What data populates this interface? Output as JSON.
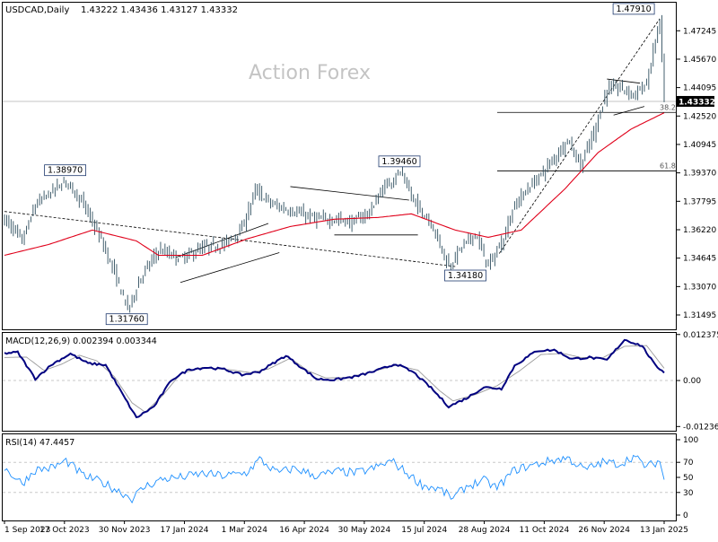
{
  "colors": {
    "candle": "#2f4f5f",
    "ma_line": "#e0001a",
    "macd_line": "#000080",
    "signal_line": "#9a9a9a",
    "rsi_line": "#1e90ff",
    "grid": "#c8c8c8",
    "frame": "#000000",
    "watermark": "#c4c4c4"
  },
  "header": {
    "symbol": "USDCAD,Daily",
    "ohlc": "1.43222 1.43436 1.43127 1.43332"
  },
  "watermark": "Action Forex",
  "chart_data": [
    {
      "type": "candlestick",
      "name": "price",
      "ylim": [
        1.307,
        1.488
      ],
      "yticks": [
        "1.47245",
        "1.45670",
        "1.44095",
        "1.42520",
        "1.40945",
        "1.39370",
        "1.37795",
        "1.36220",
        "1.34645",
        "1.33070",
        "1.31495"
      ],
      "ytick_values": [
        1.47245,
        1.4567,
        1.44095,
        1.4252,
        1.40945,
        1.3937,
        1.37795,
        1.3622,
        1.34645,
        1.3307,
        1.31495
      ],
      "current_price_label": "1.43332",
      "current_price": 1.43332,
      "annotations": [
        {
          "label": "1.38970",
          "value": 1.3897
        },
        {
          "label": "1.31760",
          "value": 1.3176
        },
        {
          "label": "1.39460",
          "value": 1.3946
        },
        {
          "label": "1.34180",
          "value": 1.3418
        },
        {
          "label": "1.47910",
          "value": 1.4791
        }
      ],
      "fib_levels": [
        {
          "label": "38.2",
          "value": 1.4272
        },
        {
          "label": "61.8",
          "value": 1.3948
        }
      ],
      "close_anchors": [
        [
          0,
          1.368
        ],
        [
          8,
          1.356
        ],
        [
          14,
          1.376
        ],
        [
          20,
          1.382
        ],
        [
          28,
          1.3897
        ],
        [
          36,
          1.376
        ],
        [
          44,
          1.356
        ],
        [
          50,
          1.338
        ],
        [
          56,
          1.3176
        ],
        [
          62,
          1.336
        ],
        [
          70,
          1.351
        ],
        [
          80,
          1.346
        ],
        [
          90,
          1.352
        ],
        [
          100,
          1.354
        ],
        [
          108,
          1.363
        ],
        [
          114,
          1.384
        ],
        [
          122,
          1.376
        ],
        [
          132,
          1.372
        ],
        [
          142,
          1.368
        ],
        [
          152,
          1.368
        ],
        [
          158,
          1.366
        ],
        [
          166,
          1.372
        ],
        [
          172,
          1.385
        ],
        [
          180,
          1.3946
        ],
        [
          186,
          1.378
        ],
        [
          194,
          1.366
        ],
        [
          202,
          1.3418
        ],
        [
          208,
          1.353
        ],
        [
          214,
          1.36
        ],
        [
          220,
          1.3418
        ],
        [
          226,
          1.355
        ],
        [
          232,
          1.376
        ],
        [
          238,
          1.385
        ],
        [
          244,
          1.393
        ],
        [
          250,
          1.402
        ],
        [
          256,
          1.412
        ],
        [
          262,
          1.398
        ],
        [
          268,
          1.416
        ],
        [
          274,
          1.44
        ],
        [
          280,
          1.441
        ],
        [
          286,
          1.437
        ],
        [
          292,
          1.443
        ],
        [
          298,
          1.4791
        ],
        [
          300,
          1.433
        ]
      ],
      "ma_anchors": [
        [
          0,
          1.348
        ],
        [
          20,
          1.354
        ],
        [
          40,
          1.362
        ],
        [
          60,
          1.356
        ],
        [
          70,
          1.348
        ],
        [
          90,
          1.348
        ],
        [
          110,
          1.357
        ],
        [
          130,
          1.364
        ],
        [
          150,
          1.368
        ],
        [
          170,
          1.369
        ],
        [
          185,
          1.371
        ],
        [
          205,
          1.362
        ],
        [
          220,
          1.358
        ],
        [
          235,
          1.362
        ],
        [
          255,
          1.385
        ],
        [
          270,
          1.405
        ],
        [
          285,
          1.418
        ],
        [
          300,
          1.427
        ]
      ],
      "trendlines": [
        {
          "from": [
            0,
            1.3723
          ],
          "to": [
            123,
            1.3542
          ],
          "style": "dashed"
        },
        {
          "from": [
            123,
            1.3542
          ],
          "to": [
            205,
            1.3418
          ],
          "style": "dashed"
        },
        {
          "from": [
            78,
            1.3469
          ],
          "to": [
            120,
            1.3657
          ],
          "style": "solid"
        },
        {
          "from": [
            80,
            1.333
          ],
          "to": [
            125,
            1.3495
          ],
          "style": "solid"
        },
        {
          "from": [
            130,
            1.3861
          ],
          "to": [
            184,
            1.3786
          ],
          "style": "solid"
        },
        {
          "from": [
            150,
            1.3593
          ],
          "to": [
            188,
            1.3593
          ],
          "style": "solid"
        },
        {
          "from": [
            225,
            1.349
          ],
          "to": [
            298,
            1.4791
          ],
          "style": "dashed"
        },
        {
          "from": [
            274,
            1.4457
          ],
          "to": [
            289,
            1.4434
          ],
          "style": "solid"
        },
        {
          "from": [
            277,
            1.4257
          ],
          "to": [
            291,
            1.4305
          ],
          "style": "solid"
        }
      ]
    },
    {
      "type": "line",
      "name": "MACD(12,26,9) 0.002394 0.003344",
      "ylim": [
        -0.0135,
        0.0128
      ],
      "yticks": [
        "0.012375",
        "0.00",
        "-0.012367"
      ],
      "ytick_values": [
        0.012375,
        0.0,
        -0.012367
      ],
      "macd_anchors": [
        [
          0,
          0.0073
        ],
        [
          6,
          0.0076
        ],
        [
          14,
          0.0005
        ],
        [
          22,
          0.0045
        ],
        [
          30,
          0.0072
        ],
        [
          38,
          0.0046
        ],
        [
          46,
          0.0042
        ],
        [
          54,
          -0.004
        ],
        [
          60,
          -0.01
        ],
        [
          68,
          -0.007
        ],
        [
          76,
          0.0002
        ],
        [
          84,
          0.003
        ],
        [
          92,
          0.0035
        ],
        [
          100,
          0.003
        ],
        [
          108,
          0.0015
        ],
        [
          116,
          0.0024
        ],
        [
          128,
          0.0067
        ],
        [
          134,
          0.004
        ],
        [
          142,
          0.0004
        ],
        [
          150,
          0.0002
        ],
        [
          160,
          0.0011
        ],
        [
          170,
          0.0028
        ],
        [
          178,
          0.0045
        ],
        [
          186,
          0.0022
        ],
        [
          194,
          -0.002
        ],
        [
          202,
          -0.007
        ],
        [
          210,
          -0.0048
        ],
        [
          218,
          -0.0018
        ],
        [
          226,
          -0.0022
        ],
        [
          232,
          0.004
        ],
        [
          242,
          0.008
        ],
        [
          250,
          0.0082
        ],
        [
          258,
          0.0058
        ],
        [
          266,
          0.0062
        ],
        [
          274,
          0.0055
        ],
        [
          282,
          0.011
        ],
        [
          290,
          0.0093
        ],
        [
          296,
          0.004
        ],
        [
          300,
          0.0023
        ]
      ],
      "signal_anchors": [
        [
          0,
          0.0062
        ],
        [
          10,
          0.0063
        ],
        [
          18,
          0.0027
        ],
        [
          26,
          0.0044
        ],
        [
          34,
          0.0068
        ],
        [
          42,
          0.0053
        ],
        [
          50,
          0.001
        ],
        [
          58,
          -0.006
        ],
        [
          64,
          -0.0085
        ],
        [
          72,
          -0.004
        ],
        [
          80,
          0.0018
        ],
        [
          90,
          0.0035
        ],
        [
          104,
          0.0028
        ],
        [
          112,
          0.0021
        ],
        [
          120,
          0.0031
        ],
        [
          130,
          0.006
        ],
        [
          138,
          0.0026
        ],
        [
          146,
          0.0007
        ],
        [
          156,
          0.0008
        ],
        [
          168,
          0.0025
        ],
        [
          178,
          0.0041
        ],
        [
          188,
          0.0028
        ],
        [
          198,
          -0.0028
        ],
        [
          204,
          -0.0055
        ],
        [
          214,
          -0.0038
        ],
        [
          224,
          -0.0014
        ],
        [
          234,
          0.0025
        ],
        [
          244,
          0.007
        ],
        [
          254,
          0.0073
        ],
        [
          262,
          0.0062
        ],
        [
          272,
          0.0061
        ],
        [
          282,
          0.0092
        ],
        [
          292,
          0.0094
        ],
        [
          300,
          0.0033
        ]
      ]
    },
    {
      "type": "line",
      "name": "RSI(14) 47.4457",
      "ylim": [
        0,
        100
      ],
      "yticks": [
        "100",
        "70",
        "50",
        "30",
        "0"
      ],
      "ytick_values": [
        100,
        70,
        50,
        30,
        0
      ],
      "levels": [
        70,
        30
      ],
      "rsi_anchors": [
        [
          0,
          62
        ],
        [
          8,
          42
        ],
        [
          14,
          60
        ],
        [
          22,
          63
        ],
        [
          28,
          72
        ],
        [
          36,
          52
        ],
        [
          44,
          44
        ],
        [
          52,
          32
        ],
        [
          58,
          22
        ],
        [
          64,
          38
        ],
        [
          72,
          48
        ],
        [
          80,
          50
        ],
        [
          90,
          55
        ],
        [
          100,
          52
        ],
        [
          110,
          56
        ],
        [
          116,
          74
        ],
        [
          124,
          56
        ],
        [
          132,
          62
        ],
        [
          142,
          52
        ],
        [
          152,
          58
        ],
        [
          160,
          56
        ],
        [
          168,
          62
        ],
        [
          176,
          72
        ],
        [
          182,
          58
        ],
        [
          190,
          40
        ],
        [
          198,
          34
        ],
        [
          204,
          22
        ],
        [
          210,
          38
        ],
        [
          218,
          46
        ],
        [
          224,
          36
        ],
        [
          232,
          60
        ],
        [
          240,
          66
        ],
        [
          248,
          72
        ],
        [
          256,
          76
        ],
        [
          264,
          60
        ],
        [
          272,
          70
        ],
        [
          280,
          68
        ],
        [
          286,
          78
        ],
        [
          292,
          64
        ],
        [
          298,
          72
        ],
        [
          300,
          47
        ]
      ]
    }
  ],
  "x_axis": {
    "labels": [
      "1 Sep 2023",
      "17 Oct 2023",
      "30 Nov 2023",
      "17 Jan 2024",
      "1 Mar 2024",
      "16 Apr 2024",
      "30 May 2024",
      "15 Jul 2024",
      "28 Aug 2024",
      "11 Oct 2024",
      "26 Nov 2024",
      "13 Jan 2025"
    ],
    "positions": [
      0,
      32,
      64,
      96,
      128,
      160,
      192,
      224,
      256,
      288,
      320,
      352
    ]
  }
}
